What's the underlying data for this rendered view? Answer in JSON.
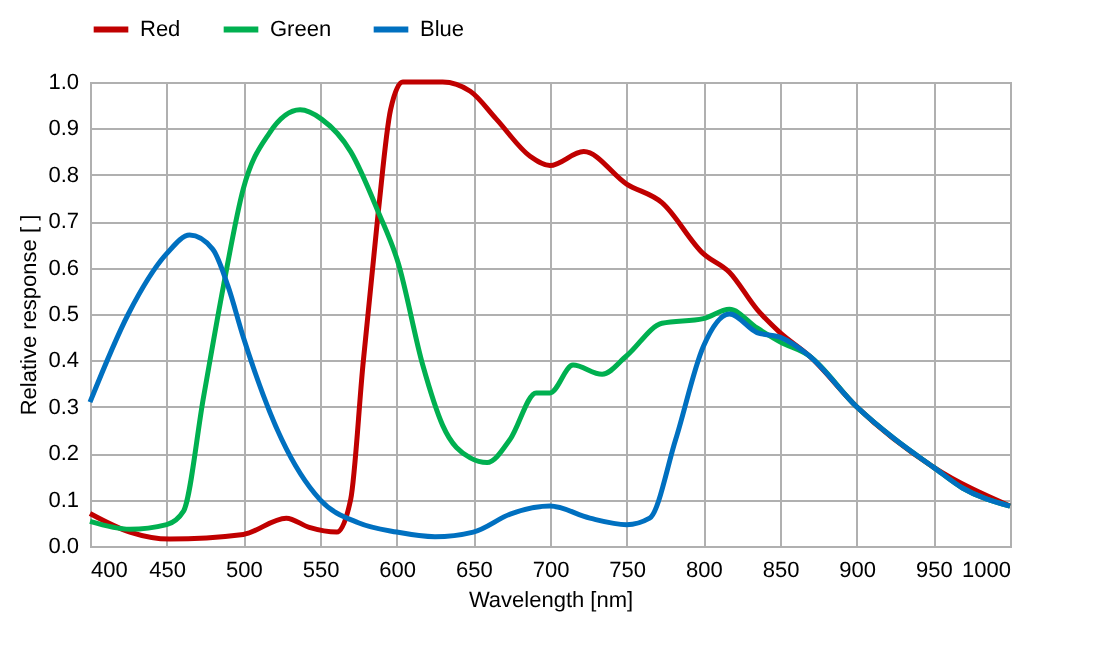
{
  "chart_data": {
    "type": "line",
    "xlabel": "Wavelength [nm]",
    "ylabel": "Relative response [ ]",
    "xlim": [
      400,
      1000
    ],
    "ylim": [
      0,
      1
    ],
    "xticks": [
      400,
      450,
      500,
      550,
      600,
      650,
      700,
      750,
      800,
      850,
      900,
      950,
      1000
    ],
    "yticks": [
      {
        "value": 0,
        "label": "0.0"
      },
      0.1,
      0.2,
      0.3,
      0.4,
      0.5,
      0.6,
      0.7,
      0.8,
      0.9,
      {
        "value": 1,
        "label": "1.0"
      }
    ],
    "grid": true,
    "legend": "top",
    "marker": "none",
    "line_style": "solid",
    "series": [
      {
        "name": "Red",
        "color": "#c00000",
        "x": [
          400,
          426,
          452,
          500,
          528,
          543,
          561,
          570,
          578,
          588,
          596,
          604,
          630,
          648,
          665,
          687,
          700,
          722,
          750,
          773,
          800,
          817,
          835,
          850,
          869,
          900,
          950,
          1000
        ],
        "values": [
          0.07,
          0.03,
          0.015,
          0.025,
          0.06,
          0.04,
          0.03,
          0.1,
          0.39,
          0.72,
          0.94,
          1.0,
          1.0,
          0.98,
          0.92,
          0.84,
          0.82,
          0.85,
          0.78,
          0.74,
          0.63,
          0.59,
          0.51,
          0.46,
          0.41,
          0.3,
          0.17,
          0.086
        ]
      },
      {
        "name": "Green",
        "color": "#00b050",
        "x": [
          400,
          426,
          450,
          461,
          474,
          487,
          500,
          517,
          537,
          551,
          570,
          588,
          601,
          617,
          630,
          648,
          659,
          674,
          691,
          700,
          715,
          734,
          750,
          773,
          800,
          817,
          835,
          850,
          869,
          900,
          925,
          950,
          969,
          1000
        ],
        "values": [
          0.053,
          0.036,
          0.046,
          0.075,
          0.32,
          0.56,
          0.77,
          0.89,
          0.94,
          0.92,
          0.85,
          0.72,
          0.61,
          0.39,
          0.26,
          0.19,
          0.18,
          0.23,
          0.33,
          0.33,
          0.39,
          0.37,
          0.41,
          0.48,
          0.49,
          0.51,
          0.47,
          0.44,
          0.41,
          0.3,
          0.23,
          0.17,
          0.125,
          0.086
        ]
      },
      {
        "name": "Blue",
        "color": "#0070c0",
        "x": [
          400,
          425,
          450,
          465,
          480,
          490,
          500,
          525,
          550,
          575,
          600,
          625,
          650,
          675,
          700,
          726,
          750,
          765,
          782,
          800,
          817,
          835,
          850,
          869,
          900,
          925,
          950,
          969,
          1000
        ],
        "values": [
          0.31,
          0.5,
          0.63,
          0.67,
          0.64,
          0.56,
          0.45,
          0.23,
          0.1,
          0.05,
          0.03,
          0.02,
          0.03,
          0.07,
          0.086,
          0.06,
          0.046,
          0.06,
          0.23,
          0.43,
          0.5,
          0.46,
          0.45,
          0.41,
          0.3,
          0.23,
          0.17,
          0.125,
          0.086
        ]
      }
    ]
  }
}
